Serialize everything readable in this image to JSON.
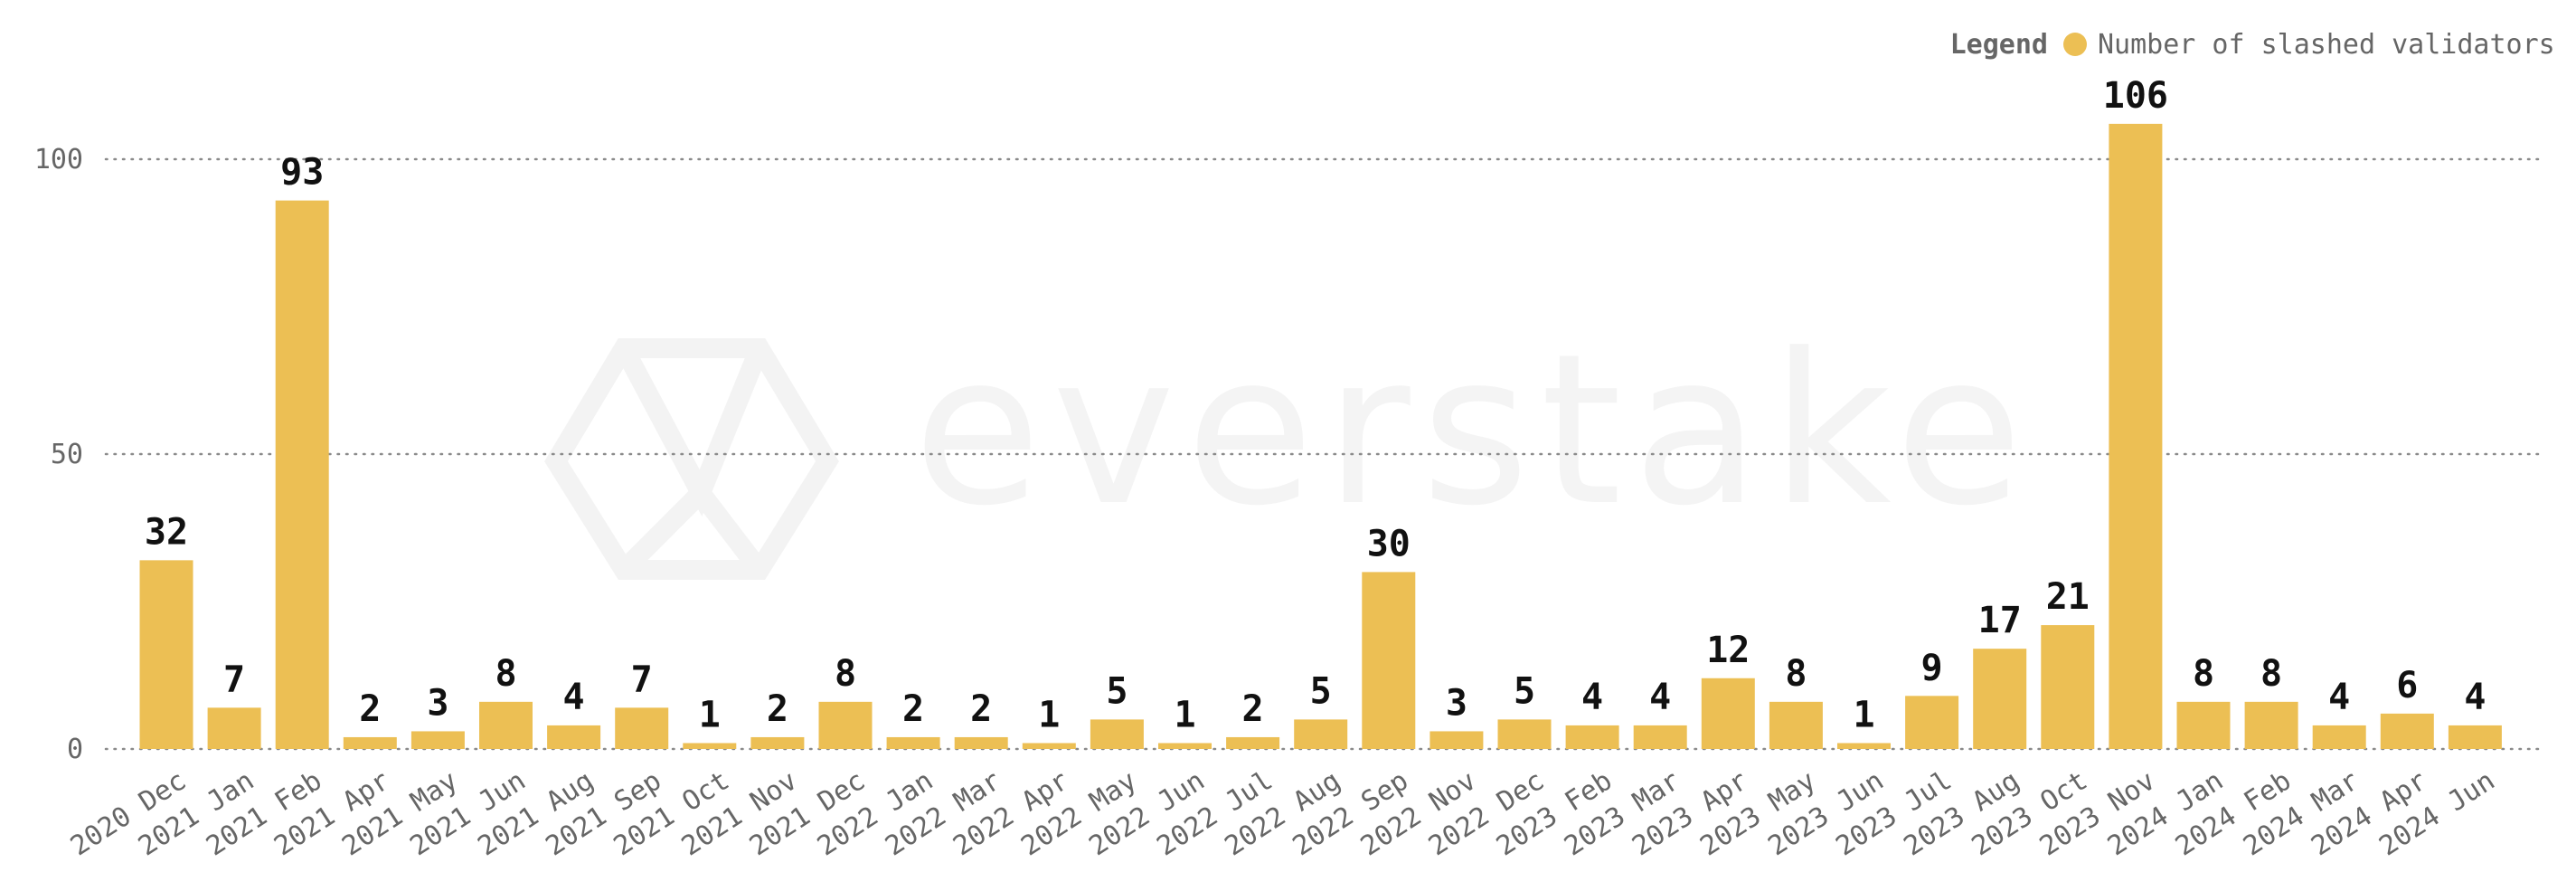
{
  "legend": {
    "title": "Legend",
    "items": [
      "Number of slashed validators"
    ]
  },
  "watermark": "everstake",
  "colors": {
    "bar": "#ECBF54",
    "grid": "#8a8a8a",
    "text": "#666666",
    "label": "#111111",
    "watermark": "#f4f4f4"
  },
  "chart_data": {
    "type": "bar",
    "categories": [
      "2020 Dec",
      "2021 Jan",
      "2021 Feb",
      "2021 Apr",
      "2021 May",
      "2021 Jun",
      "2021 Aug",
      "2021 Sep",
      "2021 Oct",
      "2021 Nov",
      "2021 Dec",
      "2022 Jan",
      "2022 Mar",
      "2022 Apr",
      "2022 May",
      "2022 Jun",
      "2022 Jul",
      "2022 Aug",
      "2022 Sep",
      "2022 Nov",
      "2022 Dec",
      "2023 Feb",
      "2023 Mar",
      "2023 Apr",
      "2023 May",
      "2023 Jun",
      "2023 Jul",
      "2023 Aug",
      "2023 Oct",
      "2023 Nov",
      "2024 Jan",
      "2024 Feb",
      "2024 Mar",
      "2024 Apr",
      "2024 Jun"
    ],
    "series": [
      {
        "name": "Number of slashed validators",
        "values": [
          32,
          7,
          93,
          2,
          3,
          8,
          4,
          7,
          1,
          2,
          8,
          2,
          2,
          1,
          5,
          1,
          2,
          5,
          30,
          3,
          5,
          4,
          4,
          12,
          8,
          1,
          9,
          17,
          21,
          106,
          8,
          8,
          4,
          6,
          4
        ]
      }
    ],
    "yticks": [
      0,
      50,
      100
    ],
    "ylim": [
      0,
      110
    ],
    "grid": true,
    "legend_position": "top-right",
    "data_labels": true
  }
}
